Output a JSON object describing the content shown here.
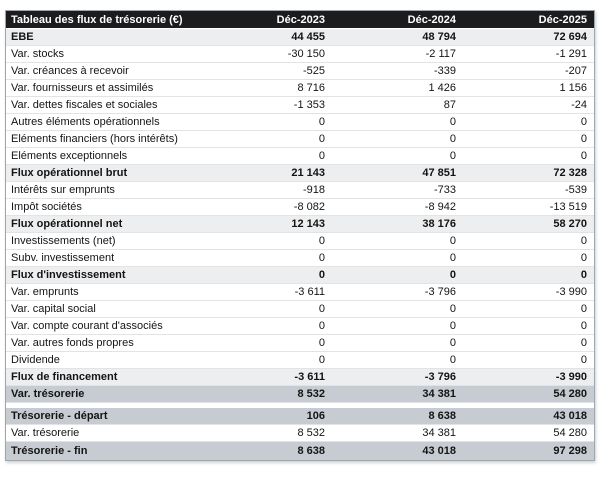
{
  "header": {
    "label": "Tableau des flux de trésorerie (€)",
    "columns": [
      "Déc-2023",
      "Déc-2024",
      "Déc-2025"
    ]
  },
  "main_rows": [
    {
      "label": "EBE",
      "values": [
        "44 455",
        "48 794",
        "72 694"
      ],
      "style": "subtotal"
    },
    {
      "label": "Var. stocks",
      "values": [
        "-30 150",
        "-2 117",
        "-1 291"
      ],
      "style": "normal"
    },
    {
      "label": "Var. créances à recevoir",
      "values": [
        "-525",
        "-339",
        "-207"
      ],
      "style": "normal"
    },
    {
      "label": "Var. fournisseurs et assimilés",
      "values": [
        "8 716",
        "1 426",
        "1 156"
      ],
      "style": "normal"
    },
    {
      "label": "Var. dettes fiscales et sociales",
      "values": [
        "-1 353",
        "87",
        "-24"
      ],
      "style": "normal"
    },
    {
      "label": "Autres éléments opérationnels",
      "values": [
        "0",
        "0",
        "0"
      ],
      "style": "normal"
    },
    {
      "label": "Eléments financiers (hors intérêts)",
      "values": [
        "0",
        "0",
        "0"
      ],
      "style": "normal"
    },
    {
      "label": "Eléments exceptionnels",
      "values": [
        "0",
        "0",
        "0"
      ],
      "style": "normal"
    },
    {
      "label": "Flux opérationnel brut",
      "values": [
        "21 143",
        "47 851",
        "72 328"
      ],
      "style": "subtotal"
    },
    {
      "label": "Intérêts sur emprunts",
      "values": [
        "-918",
        "-733",
        "-539"
      ],
      "style": "normal"
    },
    {
      "label": "Impôt sociétés",
      "values": [
        "-8 082",
        "-8 942",
        "-13 519"
      ],
      "style": "normal"
    },
    {
      "label": "Flux opérationnel net",
      "values": [
        "12 143",
        "38 176",
        "58 270"
      ],
      "style": "subtotal"
    },
    {
      "label": "Investissements (net)",
      "values": [
        "0",
        "0",
        "0"
      ],
      "style": "normal"
    },
    {
      "label": "Subv. investissement",
      "values": [
        "0",
        "0",
        "0"
      ],
      "style": "normal"
    },
    {
      "label": "Flux d'investissement",
      "values": [
        "0",
        "0",
        "0"
      ],
      "style": "subtotal"
    },
    {
      "label": "Var. emprunts",
      "values": [
        "-3 611",
        "-3 796",
        "-3 990"
      ],
      "style": "normal"
    },
    {
      "label": "Var. capital social",
      "values": [
        "0",
        "0",
        "0"
      ],
      "style": "normal"
    },
    {
      "label": "Var. compte courant d'associés",
      "values": [
        "0",
        "0",
        "0"
      ],
      "style": "normal"
    },
    {
      "label": "Var. autres fonds propres",
      "values": [
        "0",
        "0",
        "0"
      ],
      "style": "normal"
    },
    {
      "label": "Dividende",
      "values": [
        "0",
        "0",
        "0"
      ],
      "style": "normal"
    },
    {
      "label": "Flux de financement",
      "values": [
        "-3 611",
        "-3 796",
        "-3 990"
      ],
      "style": "subtotal"
    },
    {
      "label": "Var. trésorerie",
      "values": [
        "8 532",
        "34 381",
        "54 280"
      ],
      "style": "highlight"
    }
  ],
  "summary_rows": [
    {
      "label": "Trésorerie - départ",
      "values": [
        "106",
        "8 638",
        "43 018"
      ],
      "style": "highlight"
    },
    {
      "label": "Var. trésorerie",
      "values": [
        "8 532",
        "34 381",
        "54 280"
      ],
      "style": "normal"
    },
    {
      "label": "Trésorerie - fin",
      "values": [
        "8 638",
        "43 018",
        "97 298"
      ],
      "style": "highlight"
    }
  ],
  "colors": {
    "header_bg": "#1c1c1e",
    "header_text": "#ffffff",
    "subtotal_row_bg": "#edeef0",
    "highlight_row_bg": "#c7ccd2",
    "row_separator": "#e2e3e5",
    "outer_border": "#9ea5ad",
    "text": "#141414"
  }
}
